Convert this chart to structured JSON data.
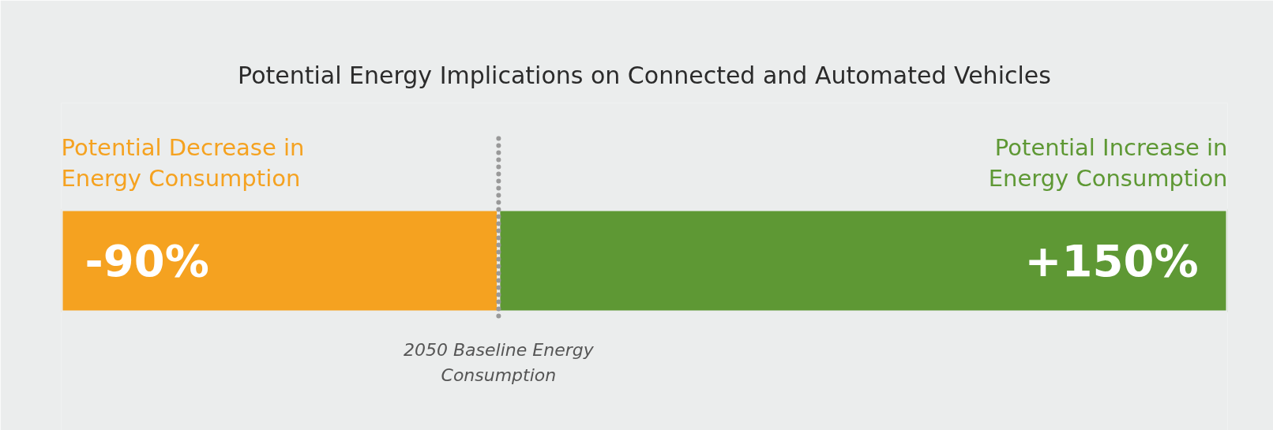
{
  "chart_data": {
    "type": "bar",
    "orientation": "horizontal",
    "stacked": true,
    "title": "Potential Energy Implications on Connected and Automated Vehicles",
    "categories": [
      null
    ],
    "xlim": [
      -90,
      150
    ],
    "tick_labels": false,
    "series": [
      {
        "name": "Potential Decrease in\nEnergy Consumption",
        "color": "#f5a220",
        "values": [
          -90
        ],
        "value_labels": [
          "-90%"
        ]
      },
      {
        "name": "Potential Increase in\nEnergy Consumption",
        "color": "#5e9834",
        "values": [
          150
        ],
        "value_labels": [
          "+150%"
        ]
      }
    ],
    "ref_lines": [
      {
        "axis": "x",
        "value": 0,
        "label": "2050 Baseline Energy\nConsumption",
        "color": "#999999",
        "line_style": "dotted"
      }
    ]
  }
}
